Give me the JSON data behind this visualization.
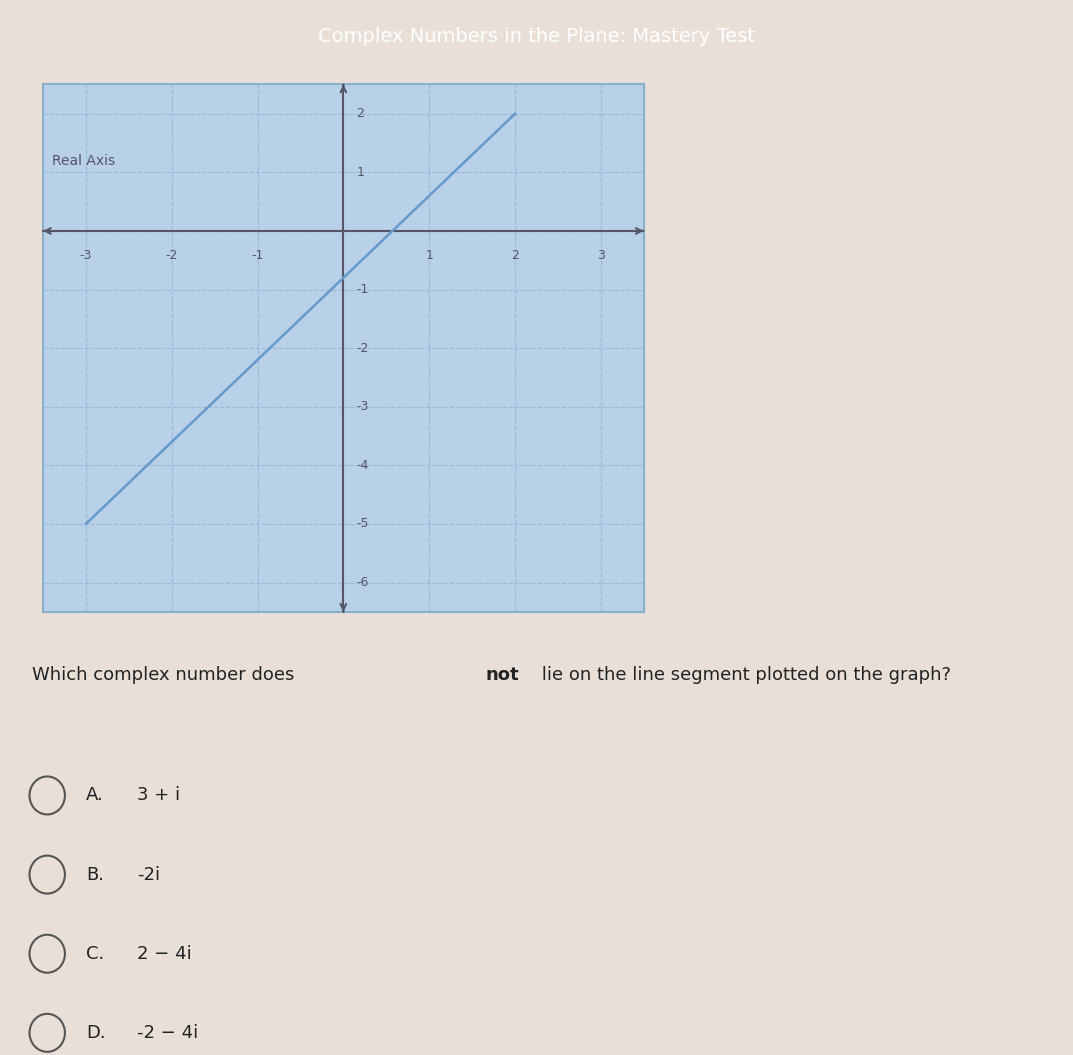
{
  "title": "Complex Numbers in the Plane: Mastery Test",
  "graph_bg_color": "#b8d0e8",
  "graph_border_color": "#8aafc8",
  "axis_label": "Real Axis",
  "xmin": -3.5,
  "xmax": 3.5,
  "ymin": -6.5,
  "ymax": 2.5,
  "xticks": [
    -3,
    -2,
    -1,
    0,
    1,
    2,
    3
  ],
  "yticks": [
    -6,
    -5,
    -4,
    -3,
    -2,
    -1,
    0,
    1,
    2
  ],
  "line_x": [
    -3,
    2
  ],
  "line_y": [
    -5,
    2
  ],
  "line_color": "#6699cc",
  "line_width": 1.8,
  "grid_color": "#8ab0cc",
  "grid_style": "--",
  "grid_alpha": 0.7,
  "question_text": "Which complex number does not ¿lie on the line segment plotted on the graph?",
  "question_text_plain": "Which complex number does not lie on the line segment plotted on the graph?",
  "choices": [
    "A.  3 + i",
    "B.  -2i",
    "C.  2 − 4i",
    "D.  -2 − 4i"
  ],
  "choices_labels": [
    "A.",
    "B.",
    "C.",
    "D."
  ],
  "choices_values": [
    "3 + i",
    "-2i",
    "2 − 4i",
    "-2 − 4i"
  ],
  "page_bg_color": "#e8e0d8",
  "header_bg_color": "#555555",
  "header_text": "Complex Numbers in the Plane: Mastery Test",
  "header_text_color": "#ffffff",
  "axis_color": "#555566",
  "tick_fontsize": 9,
  "axis_label_fontsize": 10,
  "question_fontsize": 13,
  "choice_fontsize": 13
}
